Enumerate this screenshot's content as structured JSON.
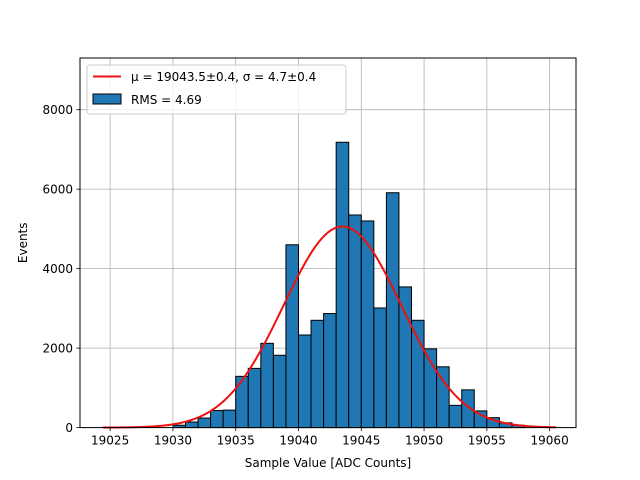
{
  "chart_data": {
    "type": "bar",
    "xlabel": "Sample Value [ADC Counts]",
    "ylabel": "Events",
    "xlim": [
      19022.6,
      19062.1
    ],
    "ylim": [
      0,
      9300
    ],
    "grid": true,
    "legend_placement": "top-left",
    "xticks": [
      19025,
      19030,
      19035,
      19040,
      19045,
      19050,
      19055,
      19060
    ],
    "yticks": [
      0,
      2000,
      4000,
      6000,
      8000
    ],
    "bin_width": 1,
    "bins": [
      {
        "x": 19030.0,
        "value": 60
      },
      {
        "x": 19031.0,
        "value": 140
      },
      {
        "x": 19032.0,
        "value": 240
      },
      {
        "x": 19033.0,
        "value": 430
      },
      {
        "x": 19034.0,
        "value": 440
      },
      {
        "x": 19035.0,
        "value": 1290
      },
      {
        "x": 19036.0,
        "value": 1490
      },
      {
        "x": 19037.0,
        "value": 2120
      },
      {
        "x": 19038.0,
        "value": 1820
      },
      {
        "x": 19039.0,
        "value": 4600
      },
      {
        "x": 19040.0,
        "value": 2330
      },
      {
        "x": 19041.0,
        "value": 2700
      },
      {
        "x": 19042.0,
        "value": 2870
      },
      {
        "x": 19043.0,
        "value": 7180
      },
      {
        "x": 19044.0,
        "value": 5350
      },
      {
        "x": 19045.0,
        "value": 5200
      },
      {
        "x": 19046.0,
        "value": 3010
      },
      {
        "x": 19047.0,
        "value": 5910
      },
      {
        "x": 19048.0,
        "value": 3540
      },
      {
        "x": 19049.0,
        "value": 2700
      },
      {
        "x": 19050.0,
        "value": 1980
      },
      {
        "x": 19051.0,
        "value": 1530
      },
      {
        "x": 19052.0,
        "value": 560
      },
      {
        "x": 19053.0,
        "value": 950
      },
      {
        "x": 19054.0,
        "value": 420
      },
      {
        "x": 19055.0,
        "value": 250
      },
      {
        "x": 19056.0,
        "value": 120
      },
      {
        "x": 19057.0,
        "value": 60
      }
    ],
    "fit": {
      "type": "gaussian",
      "mu": 19043.5,
      "sigma": 4.7,
      "amplitude": 5060,
      "x_range": [
        19024.4,
        19060.5
      ]
    },
    "series": [
      {
        "name": "μ = 19043.5±0.4, σ = 4.7±0.4",
        "color": "#ee1111",
        "kind": "line"
      },
      {
        "name": "RMS = 4.69",
        "color": "#1f77b4",
        "kind": "bar"
      }
    ],
    "colors": {
      "bar_fill": "#1f77b4",
      "bar_edge": "#000000",
      "fit_line": "#ee1111",
      "grid": "#b0b0b0"
    }
  }
}
